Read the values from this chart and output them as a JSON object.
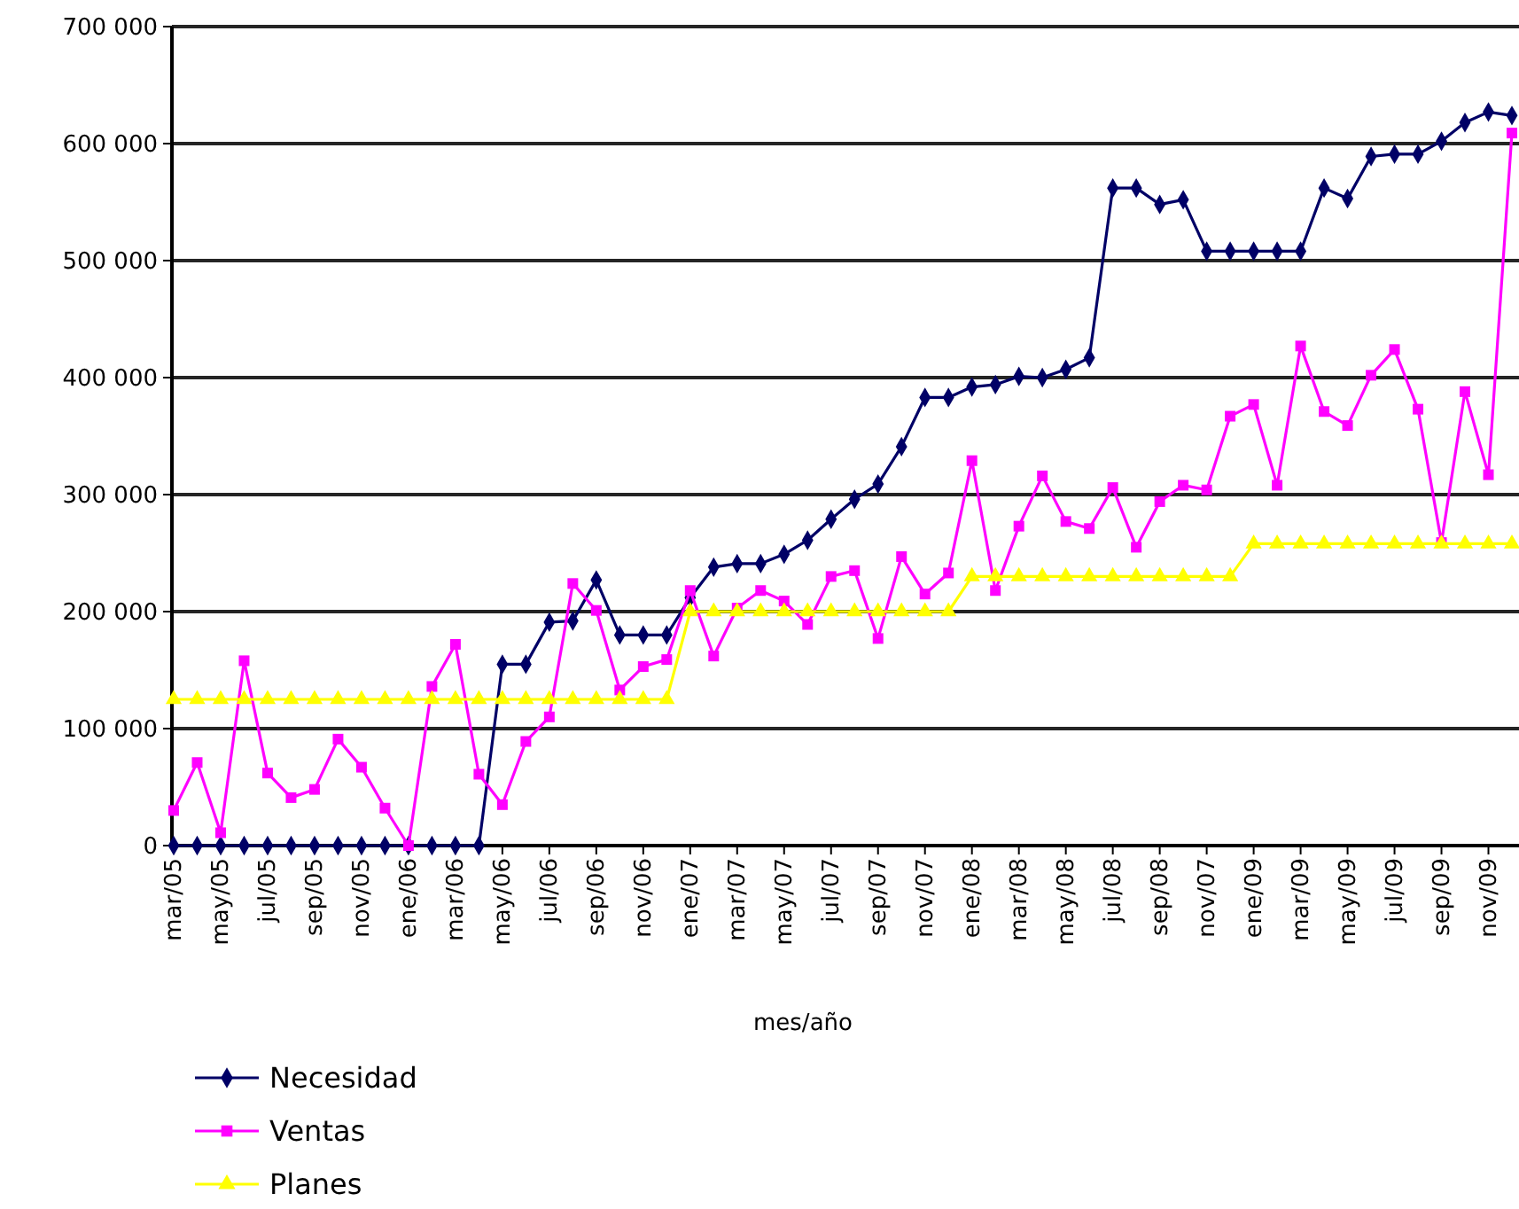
{
  "chart_data": {
    "type": "line",
    "xlabel": "mes/año",
    "categories": [
      "mar/05",
      null,
      "may/05",
      null,
      "jul/05",
      null,
      "sep/05",
      null,
      "nov/05",
      null,
      "ene/06",
      null,
      "mar/06",
      null,
      "may/06",
      null,
      "jul/06",
      null,
      "sep/06",
      null,
      "nov/06",
      null,
      "ene/07",
      null,
      "mar/07",
      null,
      "may/07",
      null,
      "jul/07",
      null,
      "sep/07",
      null,
      "nov/07",
      null,
      "ene/08",
      null,
      "mar/08",
      null,
      "may/08",
      null,
      "jul/08",
      null,
      "sep/08",
      null,
      "nov/07",
      null,
      "ene/09",
      null,
      "mar/09",
      null,
      "may/09",
      null,
      "jul/09",
      null,
      "sep/09",
      null,
      "nov/09",
      null
    ],
    "series": [
      {
        "name": "Necesidad",
        "color": "#000066",
        "marker": "diamond",
        "values": [
          0,
          0,
          0,
          0,
          0,
          0,
          0,
          0,
          0,
          0,
          0,
          0,
          0,
          0,
          155000,
          155000,
          191000,
          192000,
          227000,
          180000,
          180000,
          180000,
          212000,
          238000,
          241000,
          241000,
          249000,
          261000,
          279000,
          296000,
          309000,
          341000,
          383000,
          383000,
          392000,
          394000,
          401000,
          400000,
          407000,
          417000,
          562000,
          562000,
          548000,
          552000,
          508000,
          508000,
          508000,
          508000,
          508000,
          562000,
          553000,
          589000,
          591000,
          591000,
          602000,
          618000,
          627000,
          624000
        ]
      },
      {
        "name": "Ventas",
        "color": "#ff00ff",
        "marker": "square",
        "values": [
          30000,
          71000,
          11000,
          158000,
          62000,
          41000,
          48000,
          91000,
          67000,
          32000,
          0,
          136000,
          172000,
          61000,
          35000,
          89000,
          110000,
          224000,
          201000,
          133000,
          153000,
          159000,
          218000,
          162000,
          203000,
          218000,
          209000,
          189000,
          230000,
          235000,
          177000,
          247000,
          215000,
          233000,
          329000,
          218000,
          273000,
          316000,
          277000,
          271000,
          306000,
          255000,
          294000,
          308000,
          304000,
          367000,
          377000,
          308000,
          427000,
          371000,
          359000,
          402000,
          424000,
          373000,
          259000,
          388000,
          317000,
          609000
        ]
      },
      {
        "name": "Planes",
        "color": "#ffff00",
        "marker": "triangle",
        "values": [
          125000,
          125000,
          125000,
          125000,
          125000,
          125000,
          125000,
          125000,
          125000,
          125000,
          125000,
          125000,
          125000,
          125000,
          125000,
          125000,
          125000,
          125000,
          125000,
          125000,
          125000,
          125000,
          200000,
          200000,
          200000,
          200000,
          200000,
          200000,
          200000,
          200000,
          200000,
          200000,
          200000,
          200000,
          230000,
          230000,
          230000,
          230000,
          230000,
          230000,
          230000,
          230000,
          230000,
          230000,
          230000,
          230000,
          258000,
          258000,
          258000,
          258000,
          258000,
          258000,
          258000,
          258000,
          258000,
          258000,
          258000,
          258000
        ]
      }
    ],
    "ylim": [
      0,
      700000
    ],
    "yticks": [
      {
        "value": 0,
        "label": "0"
      },
      {
        "value": 100000,
        "label": "100 000"
      },
      {
        "value": 200000,
        "label": "200 000"
      },
      {
        "value": 300000,
        "label": "300 000"
      },
      {
        "value": 400000,
        "label": "400 000"
      },
      {
        "value": 500000,
        "label": "500 000"
      },
      {
        "value": 600000,
        "label": "600 000"
      },
      {
        "value": 700000,
        "label": "700 000"
      }
    ],
    "grid": "y",
    "legend": "bottom left",
    "line_style": "solid"
  }
}
